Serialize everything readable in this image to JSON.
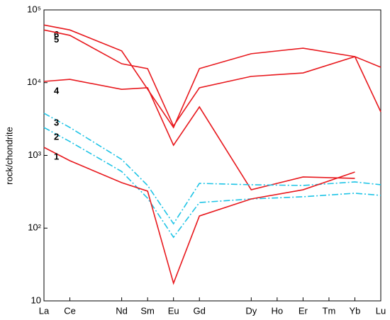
{
  "chart_data": {
    "type": "line",
    "ylabel": "rock/chondrite",
    "yscale": "log",
    "ylim": [
      10,
      100000
    ],
    "yticks": [
      10,
      {
        "value": 100,
        "label": "10²"
      },
      {
        "value": 1000,
        "label": "10³"
      },
      {
        "value": 10000,
        "label": "10⁴"
      },
      {
        "value": 100000,
        "label": "10⁵"
      }
    ],
    "xlim": [
      0,
      13
    ],
    "xticks": [
      {
        "value": 0,
        "label": "La"
      },
      {
        "value": 1,
        "label": "Ce"
      },
      {
        "value": 3,
        "label": "Nd"
      },
      {
        "value": 4,
        "label": "Sm"
      },
      {
        "value": 5,
        "label": "Eu"
      },
      {
        "value": 6,
        "label": "Gd"
      },
      {
        "value": 8,
        "label": "Dy"
      },
      {
        "value": 9,
        "label": "Ho"
      },
      {
        "value": 10,
        "label": "Er"
      },
      {
        "value": 11,
        "label": "Tm"
      },
      {
        "value": 12,
        "label": "Yb"
      },
      {
        "value": 13,
        "label": "Lu"
      }
    ],
    "series": [
      {
        "name": "6",
        "color": "#e8191e",
        "dashed": false,
        "x": [
          0,
          1,
          3,
          5,
          6,
          8,
          10,
          12,
          13
        ],
        "values": [
          62000,
          53000,
          27300,
          2420,
          15600,
          25000,
          29800,
          22800,
          16300
        ]
      },
      {
        "name": "5",
        "color": "#e8191e",
        "dashed": false,
        "x": [
          0,
          1,
          3,
          4,
          5,
          6,
          8,
          10,
          12,
          13
        ],
        "values": [
          53000,
          44700,
          18200,
          15600,
          2540,
          8500,
          12200,
          13600,
          22800,
          3970
        ]
      },
      {
        "name": "4",
        "color": "#e8191e",
        "dashed": false,
        "x": [
          0,
          1,
          3,
          4,
          5,
          6,
          8,
          10,
          12
        ],
        "values": [
          10400,
          11100,
          8100,
          8500,
          1380,
          4640,
          337,
          505,
          483
        ]
      },
      {
        "name": "3",
        "color": "#1fc4e6",
        "dashed": true,
        "x": [
          0,
          1,
          3,
          4,
          5,
          6,
          8,
          10,
          12,
          13
        ],
        "values": [
          3800,
          2420,
          880,
          386,
          115,
          413,
          395,
          386,
          432,
          395
        ]
      },
      {
        "name": "2",
        "color": "#1fc4e6",
        "dashed": true,
        "x": [
          0,
          1,
          3,
          4,
          5,
          6,
          8,
          10,
          12,
          13
        ],
        "values": [
          2420,
          1550,
          600,
          258,
          75,
          225,
          252,
          270,
          302,
          282
        ]
      },
      {
        "name": "1",
        "color": "#e8191e",
        "dashed": false,
        "x": [
          0,
          1,
          3,
          4,
          5,
          6,
          8,
          10,
          12
        ],
        "values": [
          1290,
          845,
          422,
          323,
          17.5,
          147,
          252,
          337,
          590
        ]
      }
    ]
  }
}
